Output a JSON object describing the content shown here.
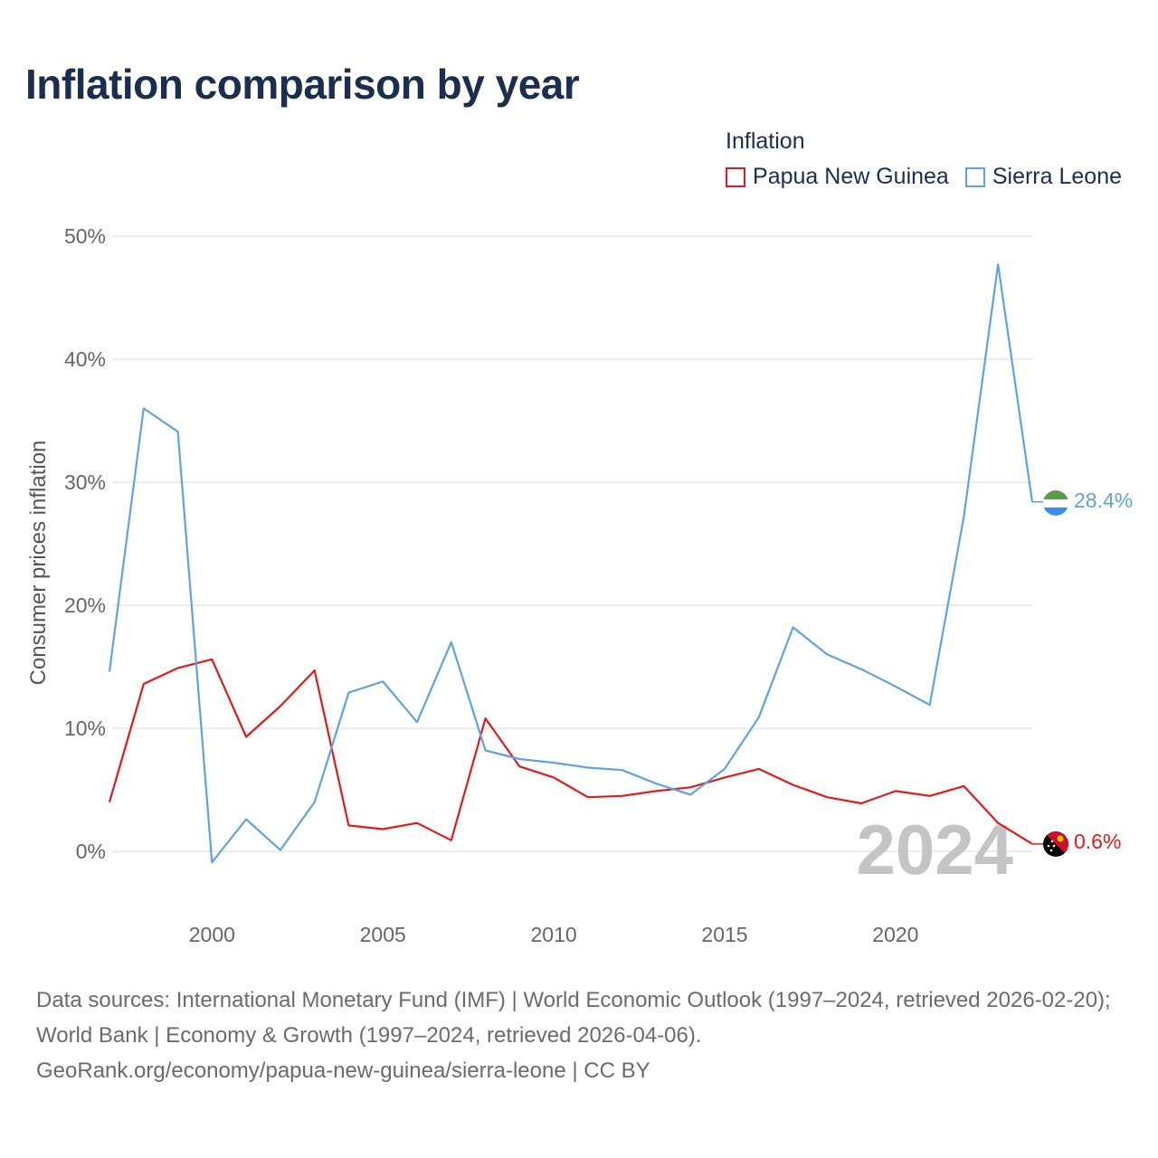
{
  "title": "Inflation comparison by year",
  "legend": {
    "title": "Inflation",
    "items": [
      {
        "label": "Papua New Guinea",
        "color": "#e31a1c"
      },
      {
        "label": "Sierra Leone",
        "color": "#5fa3e2"
      }
    ]
  },
  "chart_data": {
    "type": "line",
    "ylabel": "Consumer prices inflation",
    "xlabel": "",
    "xlim": [
      1997,
      2024
    ],
    "ylim": [
      -5,
      50
    ],
    "yticks": [
      0,
      10,
      20,
      30,
      40,
      50
    ],
    "ytick_labels": [
      "0%",
      "10%",
      "20%",
      "30%",
      "40%",
      "50%"
    ],
    "xticks": [
      2000,
      2005,
      2010,
      2015,
      2020
    ],
    "xtick_labels": [
      "2000",
      "2005",
      "2010",
      "2015",
      "2020"
    ],
    "x": [
      1997,
      1998,
      1999,
      2000,
      2001,
      2002,
      2003,
      2004,
      2005,
      2006,
      2007,
      2008,
      2009,
      2010,
      2011,
      2012,
      2013,
      2014,
      2015,
      2016,
      2017,
      2018,
      2019,
      2020,
      2021,
      2022,
      2023,
      2024
    ],
    "series": [
      {
        "name": "Papua New Guinea",
        "color": "#e31a1c",
        "end_label": "0.6%",
        "values": [
          4.0,
          13.6,
          14.9,
          15.6,
          9.3,
          11.8,
          14.7,
          2.1,
          1.8,
          2.3,
          0.9,
          10.8,
          6.9,
          6.0,
          4.4,
          4.5,
          4.9,
          5.2,
          6.0,
          6.7,
          5.4,
          4.4,
          3.9,
          4.9,
          4.5,
          5.3,
          2.3,
          0.6
        ]
      },
      {
        "name": "Sierra Leone",
        "color": "#5fa3e2",
        "end_label": "28.4%",
        "values": [
          14.6,
          36.0,
          34.1,
          -0.9,
          2.6,
          0.1,
          4.0,
          12.9,
          13.8,
          10.5,
          17.0,
          8.2,
          7.5,
          7.2,
          6.8,
          6.6,
          5.5,
          4.6,
          6.7,
          10.9,
          18.2,
          16.0,
          14.8,
          13.4,
          11.9,
          27.2,
          47.7,
          28.4
        ]
      }
    ],
    "current_year": "2024"
  },
  "footer": {
    "sources": "Data sources: International Monetary Fund (IMF) | World Economic Outlook (1997–2024, retrieved 2026-02-20); World Bank | Economy & Growth (1997–2024, retrieved 2026-04-06).",
    "link": "GeoRank.org/economy/papua-new-guinea/sierra-leone | CC BY"
  }
}
